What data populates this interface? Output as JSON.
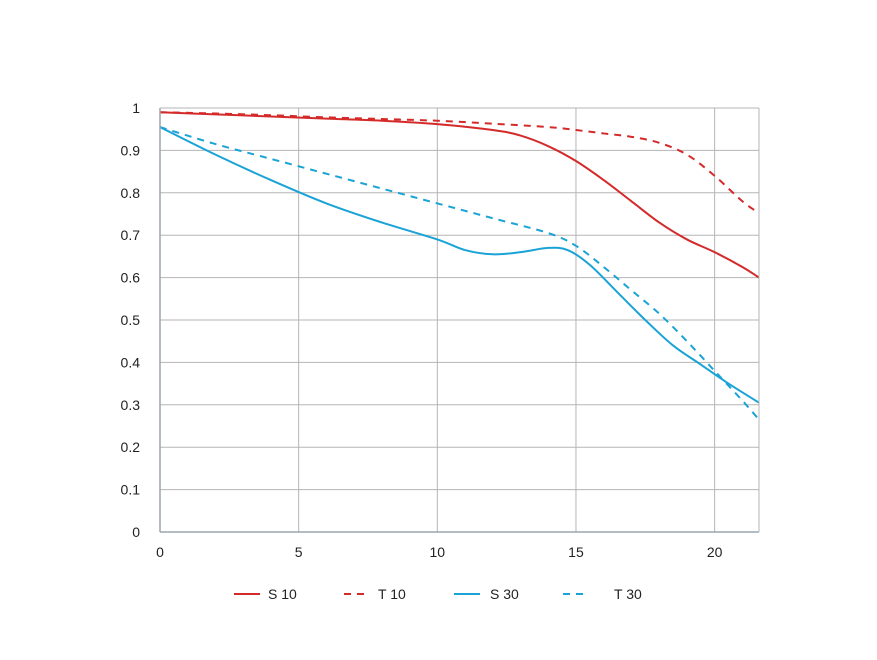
{
  "chart_data": {
    "type": "line",
    "title": "",
    "xlabel": "",
    "ylabel": "",
    "xlim": [
      0,
      21.6
    ],
    "ylim": [
      0,
      1
    ],
    "x_ticks": [
      0,
      5,
      10,
      15,
      20
    ],
    "y_ticks": [
      0,
      0.1,
      0.2,
      0.3,
      0.4,
      0.5,
      0.6,
      0.7,
      0.8,
      0.9,
      1
    ],
    "x_tick_labels": [
      "0",
      "5",
      "10",
      "15",
      "20"
    ],
    "y_tick_labels": [
      "0",
      "0.1",
      "0.2",
      "0.3",
      "0.4",
      "0.5",
      "0.6",
      "0.7",
      "0.8",
      "0.9",
      "1"
    ],
    "grid": true,
    "legend_position": "bottom",
    "series": [
      {
        "name": "S 10",
        "color": "#d42a2a",
        "dash": "solid",
        "x": [
          0,
          2,
          4,
          6,
          8,
          10,
          12,
          13,
          14,
          15,
          16,
          17,
          18,
          19,
          20,
          21,
          21.6
        ],
        "y": [
          0.99,
          0.985,
          0.98,
          0.975,
          0.97,
          0.962,
          0.948,
          0.935,
          0.91,
          0.875,
          0.83,
          0.78,
          0.73,
          0.69,
          0.66,
          0.625,
          0.6
        ]
      },
      {
        "name": "T 10",
        "color": "#d42a2a",
        "dash": "dashed",
        "x": [
          0,
          2,
          4,
          6,
          8,
          10,
          12,
          14,
          15,
          16,
          17,
          18,
          19,
          20,
          21,
          21.6
        ],
        "y": [
          0.99,
          0.987,
          0.983,
          0.978,
          0.974,
          0.97,
          0.963,
          0.955,
          0.948,
          0.94,
          0.932,
          0.918,
          0.89,
          0.84,
          0.78,
          0.752
        ]
      },
      {
        "name": "S 30",
        "color": "#1aa3d6",
        "dash": "solid",
        "x": [
          0,
          2,
          4,
          6,
          8,
          10,
          11,
          12,
          13,
          14,
          14.7,
          15.5,
          16.5,
          17.5,
          18.5,
          19.5,
          20.5,
          21.6
        ],
        "y": [
          0.955,
          0.89,
          0.83,
          0.775,
          0.73,
          0.69,
          0.665,
          0.655,
          0.66,
          0.67,
          0.665,
          0.63,
          0.565,
          0.5,
          0.44,
          0.395,
          0.35,
          0.305
        ]
      },
      {
        "name": "T 30",
        "color": "#1aa3d6",
        "dash": "dashed",
        "x": [
          0,
          2,
          4,
          6,
          8,
          10,
          12,
          14,
          15,
          16,
          17,
          18,
          19,
          20,
          21,
          21.6
        ],
        "y": [
          0.955,
          0.915,
          0.88,
          0.845,
          0.81,
          0.775,
          0.74,
          0.705,
          0.675,
          0.625,
          0.57,
          0.515,
          0.45,
          0.38,
          0.31,
          0.265
        ]
      }
    ]
  }
}
